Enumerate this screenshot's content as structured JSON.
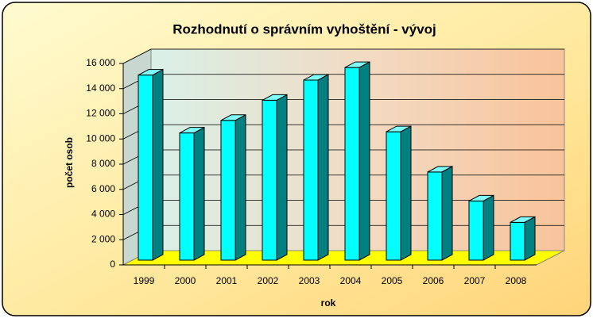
{
  "chart_data": {
    "type": "bar",
    "title": "Rozhodnutí o správním vyhoštění  - vývoj",
    "x_label": "rok",
    "y_label": "počet osob",
    "categories": [
      "1999",
      "2000",
      "2001",
      "2002",
      "2003",
      "2004",
      "2005",
      "2006",
      "2007",
      "2008"
    ],
    "values": [
      14700,
      10100,
      11100,
      12700,
      14300,
      15300,
      10200,
      7000,
      4700,
      3000
    ],
    "color": "#00ffff",
    "ylim": [
      0,
      16000
    ],
    "yticks": [
      0,
      {
        "value": 2000,
        "label": "2 000"
      },
      {
        "value": 4000,
        "label": "4 000"
      },
      {
        "value": 6000,
        "label": "6 000"
      },
      {
        "value": 8000,
        "label": "8 000"
      },
      {
        "value": 10000,
        "label": "10 000"
      },
      {
        "value": 12000,
        "label": "12 000"
      },
      {
        "value": 14000,
        "label": "14 000"
      },
      {
        "value": 16000,
        "label": "16 000"
      }
    ],
    "grid": true
  }
}
